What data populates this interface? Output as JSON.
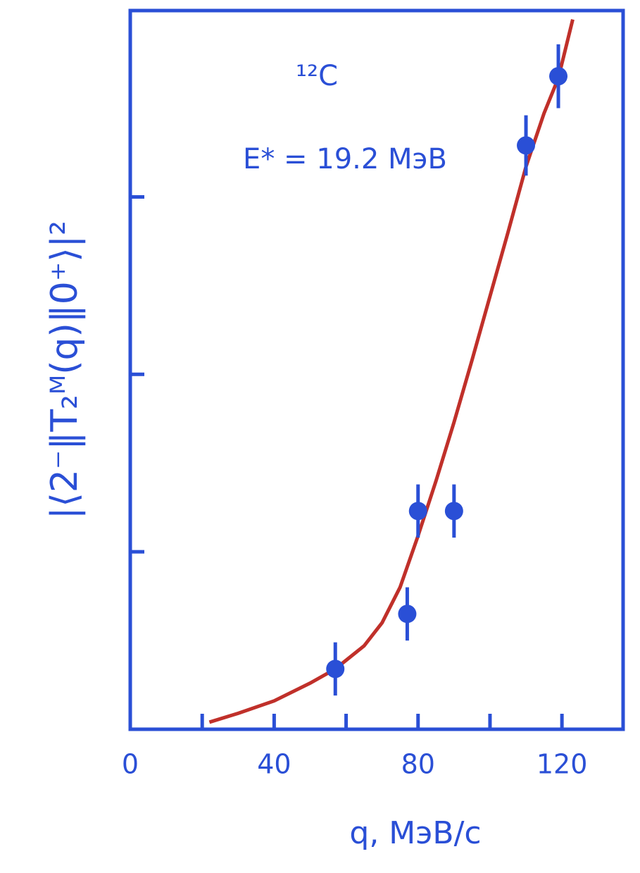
{
  "chart_data": {
    "type": "scatter",
    "nucleus": "¹²C",
    "annotation": "E* = 19.2 МэВ",
    "x_label": "q, МэВ/c",
    "y_label": "|⟨2⁻‖T₂ᴹ(q)‖0⁺⟩|²",
    "xlim": [
      0,
      137
    ],
    "ylim": [
      0,
      4.05
    ],
    "xticks": [
      0,
      40,
      80,
      120
    ],
    "xtickmarks": [
      20,
      60,
      100
    ],
    "ytickmarks": [
      1,
      2,
      3
    ],
    "color": "#2a4fd6",
    "points": {
      "x": [
        57,
        77,
        80,
        90,
        110,
        119
      ],
      "values": [
        0.34,
        0.65,
        1.23,
        1.23,
        3.29,
        3.68
      ],
      "errors": [
        0.15,
        0.15,
        0.15,
        0.15,
        0.17,
        0.18
      ]
    },
    "curve": {
      "color": "#c0302a",
      "x": [
        22,
        30,
        40,
        50,
        57,
        65,
        70,
        75,
        80,
        85,
        90,
        95,
        100,
        105,
        110,
        115,
        119,
        123
      ],
      "values": [
        0.04,
        0.09,
        0.16,
        0.26,
        0.34,
        0.47,
        0.6,
        0.8,
        1.09,
        1.4,
        1.73,
        2.08,
        2.44,
        2.8,
        3.17,
        3.47,
        3.67,
        4.0
      ]
    }
  }
}
